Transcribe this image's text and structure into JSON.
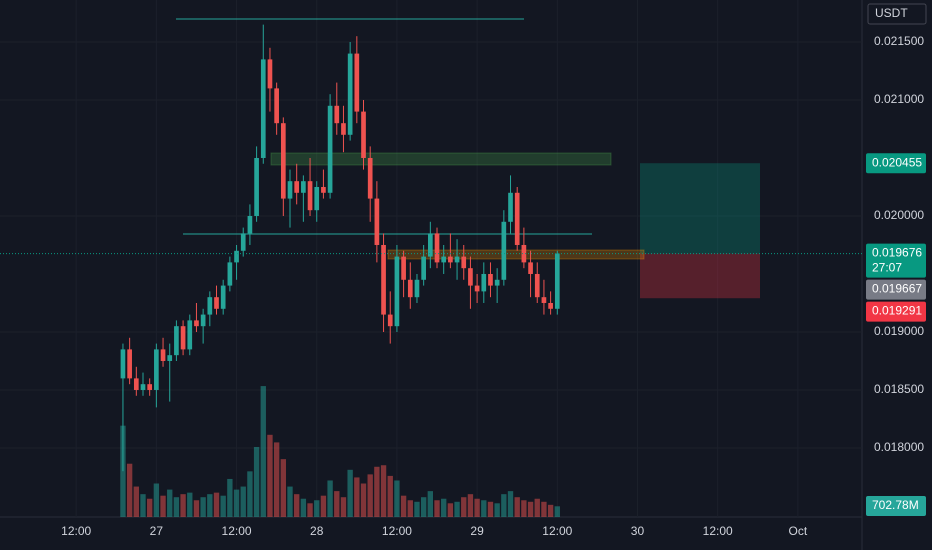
{
  "chart_data": {
    "type": "candlestick",
    "currency": "USDT",
    "up_color": "#26a69a",
    "down_color": "#ef5350",
    "grid": true,
    "x": [
      19,
      20,
      21,
      22,
      23,
      24,
      25,
      26,
      27,
      28,
      29,
      30,
      31,
      32,
      33,
      34,
      35,
      36,
      37,
      38,
      39,
      40,
      41,
      42,
      43,
      44,
      45,
      46,
      47,
      48,
      49,
      50,
      51,
      52,
      53,
      54,
      55,
      56,
      57,
      58,
      59,
      60,
      61,
      62,
      63,
      64,
      65,
      66,
      67,
      68,
      69,
      70,
      71,
      72,
      73,
      74,
      75,
      76,
      77,
      78,
      79,
      80,
      81,
      82,
      83,
      84
    ],
    "xlim": [
      0.6,
      129.6
    ],
    "xticks": [
      {
        "value": 12,
        "label": "12:00"
      },
      {
        "value": 24,
        "label": "27"
      },
      {
        "value": 36,
        "label": "12:00"
      },
      {
        "value": 48,
        "label": "28"
      },
      {
        "value": 60,
        "label": "12:00"
      },
      {
        "value": 72,
        "label": "29"
      },
      {
        "value": 84,
        "label": "12:00"
      },
      {
        "value": 96,
        "label": "30"
      },
      {
        "value": 108,
        "label": "12:00"
      },
      {
        "value": 120,
        "label": "Oct"
      }
    ],
    "ylim": [
      0.017405,
      0.021862
    ],
    "yticks": [
      {
        "value": 0.018,
        "label": "0.018000"
      },
      {
        "value": 0.0185,
        "label": "0.018500"
      },
      {
        "value": 0.019,
        "label": "0.019000"
      },
      {
        "value": 0.02,
        "label": "0.020000"
      },
      {
        "value": 0.021,
        "label": "0.021000"
      },
      {
        "value": 0.0215,
        "label": "0.021500"
      }
    ],
    "open": [
      0.0186,
      0.01885,
      0.0186,
      0.0185,
      0.01855,
      0.0185,
      0.01885,
      0.01875,
      0.0188,
      0.01905,
      0.01885,
      0.0191,
      0.01905,
      0.01915,
      0.0193,
      0.0192,
      0.0194,
      0.0196,
      0.0197,
      0.01985,
      0.02,
      0.0205,
      0.02135,
      0.0211,
      0.0208,
      0.02015,
      0.0203,
      0.0202,
      0.0203,
      0.02005,
      0.02025,
      0.0202,
      0.02095,
      0.0208,
      0.0207,
      0.0214,
      0.0209,
      0.0205,
      0.02015,
      0.01975,
      0.01915,
      0.01905,
      0.01965,
      0.01945,
      0.0193,
      0.01945,
      0.01965,
      0.01985,
      0.0196,
      0.01965,
      0.0196,
      0.01965,
      0.01955,
      0.0194,
      0.01935,
      0.0195,
      0.0194,
      0.01945,
      0.01995,
      0.0202,
      0.01975,
      0.0196,
      0.0195,
      0.0193,
      0.01925,
      0.0192
    ],
    "high": [
      0.0189,
      0.01895,
      0.0187,
      0.01865,
      0.0186,
      0.0189,
      0.01895,
      0.0189,
      0.0191,
      0.0191,
      0.01915,
      0.01925,
      0.0192,
      0.01935,
      0.0194,
      0.01945,
      0.01965,
      0.01975,
      0.0199,
      0.0201,
      0.0206,
      0.02165,
      0.02145,
      0.02115,
      0.02085,
      0.0204,
      0.02045,
      0.02035,
      0.0205,
      0.0203,
      0.0204,
      0.02105,
      0.02115,
      0.02095,
      0.0215,
      0.02155,
      0.021,
      0.0206,
      0.0203,
      0.01985,
      0.01935,
      0.01975,
      0.0197,
      0.0196,
      0.0195,
      0.01975,
      0.01995,
      0.0199,
      0.01975,
      0.01985,
      0.0198,
      0.01975,
      0.01965,
      0.0195,
      0.0196,
      0.0196,
      0.01955,
      0.02005,
      0.02035,
      0.02025,
      0.0199,
      0.0197,
      0.0196,
      0.01945,
      0.01935,
      0.0197
    ],
    "low": [
      0.0178,
      0.01855,
      0.01845,
      0.01845,
      0.01845,
      0.01835,
      0.0187,
      0.0184,
      0.01875,
      0.0188,
      0.0188,
      0.019,
      0.0189,
      0.01905,
      0.01915,
      0.01915,
      0.01935,
      0.01945,
      0.01965,
      0.01975,
      0.01995,
      0.02045,
      0.0209,
      0.0207,
      0.02,
      0.0199,
      0.0201,
      0.01995,
      0.02,
      0.01995,
      0.02015,
      0.02015,
      0.0207,
      0.02055,
      0.02065,
      0.0208,
      0.0204,
      0.01995,
      0.0196,
      0.019,
      0.0189,
      0.019,
      0.0193,
      0.0192,
      0.01925,
      0.0194,
      0.01955,
      0.01955,
      0.0195,
      0.01955,
      0.01945,
      0.01945,
      0.0192,
      0.01925,
      0.01925,
      0.0193,
      0.01925,
      0.0194,
      0.01985,
      0.0197,
      0.01955,
      0.0193,
      0.01925,
      0.01915,
      0.01915,
      0.01915
    ],
    "close": [
      0.01885,
      0.0186,
      0.0185,
      0.01855,
      0.0185,
      0.01885,
      0.01875,
      0.0188,
      0.01905,
      0.01885,
      0.0191,
      0.01905,
      0.01915,
      0.0193,
      0.0192,
      0.0194,
      0.0196,
      0.0197,
      0.01985,
      0.02,
      0.0205,
      0.02135,
      0.0211,
      0.0208,
      0.02015,
      0.0203,
      0.0202,
      0.0203,
      0.02005,
      0.02025,
      0.0202,
      0.02095,
      0.0208,
      0.0207,
      0.0214,
      0.0209,
      0.0205,
      0.02015,
      0.01975,
      0.01915,
      0.01905,
      0.01965,
      0.01945,
      0.0193,
      0.01945,
      0.01965,
      0.01985,
      0.0196,
      0.01965,
      0.0196,
      0.01965,
      0.01955,
      0.0194,
      0.01935,
      0.0195,
      0.0194,
      0.01945,
      0.01995,
      0.0202,
      0.01975,
      0.0196,
      0.0195,
      0.0193,
      0.01925,
      0.0192,
      0.019676
    ],
    "volume": [
      6000,
      3500,
      2000,
      1500,
      1200,
      2200,
      1400,
      1800,
      1300,
      1500,
      1600,
      1100,
      1300,
      1500,
      1600,
      1400,
      2500,
      1800,
      2000,
      3000,
      4600,
      8600,
      5400,
      4900,
      3800,
      2000,
      1500,
      1200,
      900,
      1100,
      1400,
      2400,
      1700,
      1300,
      3100,
      2600,
      2200,
      2800,
      3300,
      3400,
      2700,
      2400,
      1400,
      1100,
      1000,
      1300,
      1700,
      1100,
      1200,
      900,
      1000,
      1300,
      1500,
      1200,
      1100,
      1000,
      900,
      1500,
      1700,
      1300,
      1100,
      1000,
      1200,
      1000,
      800,
      702.78
    ],
    "volume_lim": [
      0,
      9000
    ],
    "volume_value_label": "702.78M",
    "price_labels": [
      {
        "value": 0.020455,
        "label": "0.020455",
        "color": "#089981"
      },
      {
        "value": 0.019676,
        "label": "0.019676",
        "color": "#089981",
        "countdown": "27:07"
      },
      {
        "value": 0.019667,
        "label": "0.019667",
        "color": "#787b86"
      },
      {
        "value": 0.019291,
        "label": "0.019291",
        "color": "#f23645"
      }
    ]
  }
}
